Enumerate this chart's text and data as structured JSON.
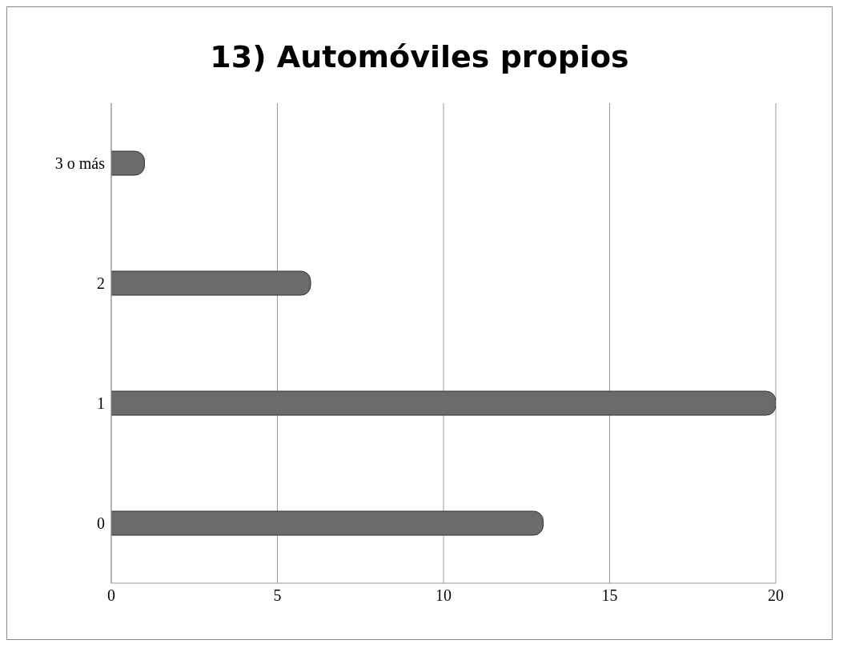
{
  "chart_data": {
    "type": "bar",
    "title": "13) Automóviles propios",
    "orientation": "horizontal",
    "categories": [
      "3 o más",
      "2",
      "1",
      "0"
    ],
    "values": [
      1,
      6,
      20,
      13
    ],
    "color": "#6b6b6b",
    "xlim": [
      0,
      20
    ],
    "xticks": [
      0,
      5,
      10,
      15,
      20
    ],
    "grid": "x"
  }
}
